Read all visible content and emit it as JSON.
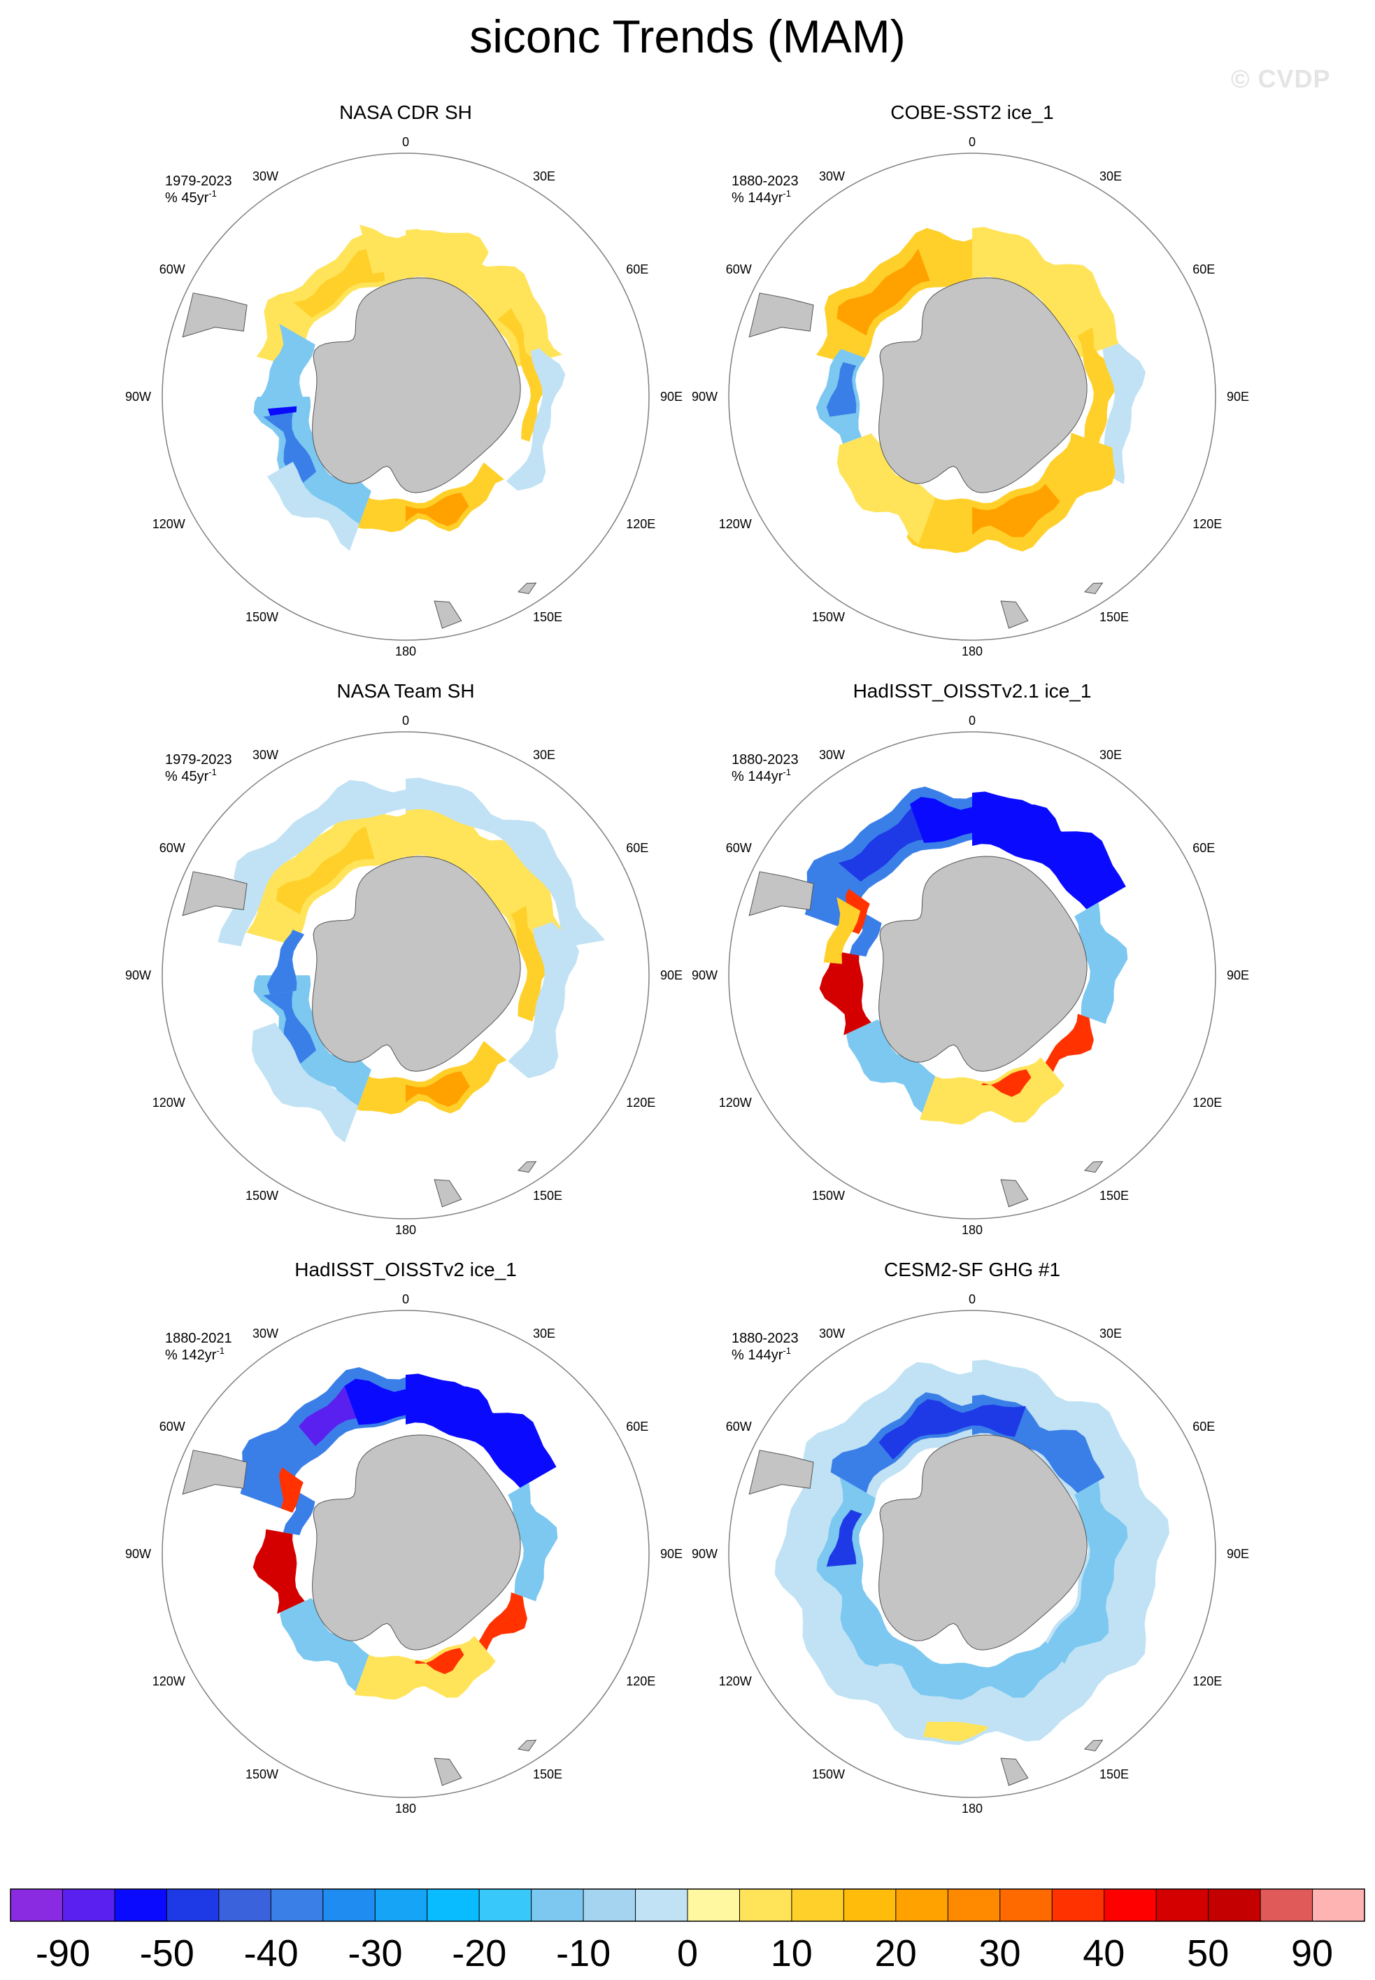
{
  "title": "siconc Trends (MAM)",
  "watermark": "© CVDP",
  "lon_labels": {
    "top": "0",
    "bottom": "180",
    "r30e": "30E",
    "r60e": "60E",
    "r90e": "90E",
    "r120e": "120E",
    "r150e": "150E",
    "l30w": "30W",
    "l60w": "60W",
    "l90w": "90W",
    "l120w": "120W",
    "l150w": "150W"
  },
  "panels": [
    {
      "title": "NASA CDR SH",
      "period": "1979-2023",
      "units": "% 45yr",
      "units_sup": "-1",
      "pattern": "cdr"
    },
    {
      "title": "COBE-SST2 ice_1",
      "period": "1880-2023",
      "units": "% 144yr",
      "units_sup": "-1",
      "pattern": "cobe"
    },
    {
      "title": "NASA Team SH",
      "period": "1979-2023",
      "units": "% 45yr",
      "units_sup": "-1",
      "pattern": "team"
    },
    {
      "title": "HadISST_OISSTv2.1 ice_1",
      "period": "1880-2023",
      "units": "% 144yr",
      "units_sup": "-1",
      "pattern": "had21"
    },
    {
      "title": "HadISST_OISSTv2 ice_1",
      "period": "1880-2021",
      "units": "% 142yr",
      "units_sup": "-1",
      "pattern": "had2"
    },
    {
      "title": "CESM2-SF GHG #1",
      "period": "1880-2023",
      "units": "% 144yr",
      "units_sup": "-1",
      "pattern": "cesm"
    }
  ],
  "colorbar": {
    "colors": [
      "#8a2be2",
      "#5a20f0",
      "#0a0aff",
      "#1e3ae6",
      "#3a62dc",
      "#3a7fe8",
      "#1f8cf2",
      "#15a4f6",
      "#08bcff",
      "#38c8fa",
      "#7cc8f0",
      "#a4d4f0",
      "#c0e2f4",
      "#fff8a0",
      "#ffe45a",
      "#ffd02a",
      "#ffbc0a",
      "#ffa200",
      "#ff8a00",
      "#ff6a00",
      "#ff3200",
      "#ff0000",
      "#d40000",
      "#c40000",
      "#e05a5a",
      "#ffb4b4"
    ],
    "labels": [
      "-90",
      "-50",
      "-40",
      "-30",
      "-20",
      "-10",
      "0",
      "10",
      "20",
      "30",
      "40",
      "50",
      "90"
    ]
  }
}
